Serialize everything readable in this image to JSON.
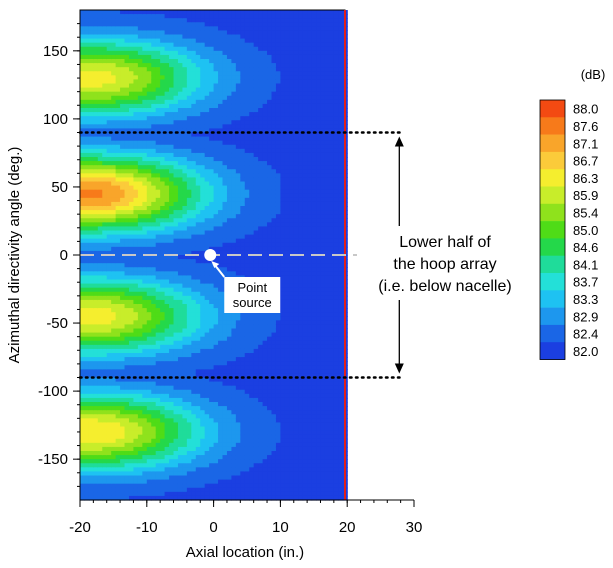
{
  "chart_data": {
    "type": "heatmap",
    "xlabel": "Axial location (in.)",
    "ylabel": "Azimuthal directivity angle (deg.)",
    "xlim": [
      -20,
      30
    ],
    "ylim": [
      -180,
      180
    ],
    "xticks": [
      "-20",
      "-10",
      "0",
      "10",
      "20",
      "30"
    ],
    "yticks": [
      "150",
      "100",
      "50",
      "0",
      "-50",
      "-100",
      "-150"
    ],
    "data_xlim": [
      -20,
      20
    ],
    "colorbar": {
      "unit": "(dB)",
      "levels": [
        "88.0",
        "87.6",
        "87.1",
        "86.7",
        "86.3",
        "85.9",
        "85.4",
        "85.0",
        "84.6",
        "84.1",
        "83.7",
        "83.3",
        "82.9",
        "82.4",
        "82.0"
      ],
      "colors": [
        "#f34a12",
        "#f77a1a",
        "#f9a52a",
        "#fbcb3a",
        "#f5ee2e",
        "#c8ed2a",
        "#8fe21c",
        "#4fdc17",
        "#24d84a",
        "#1fdc9a",
        "#23e0d8",
        "#1ec2f2",
        "#1d97ee",
        "#1a66e6",
        "#1b3fe1"
      ]
    },
    "field_peaks": [
      {
        "angle": 130,
        "x": -18,
        "level": 86.3
      },
      {
        "angle": 45,
        "x": -18,
        "level": 87.4
      },
      {
        "angle": -45,
        "x": -18,
        "level": 86.3
      },
      {
        "angle": -130,
        "x": -18,
        "level": 86.5
      }
    ],
    "reference_lines": [
      {
        "angle": 90,
        "style": "dotted"
      },
      {
        "angle": -90,
        "style": "dotted"
      },
      {
        "angle": 0,
        "style": "dashed"
      }
    ],
    "annotations": {
      "point_source_label": [
        "Point",
        "source"
      ],
      "point_source_at": {
        "x": -0.5,
        "y": 0
      },
      "region_label": [
        "Lower half of",
        "the hoop array",
        "(i.e. below nacelle)"
      ],
      "region_range": [
        -90,
        90
      ]
    }
  }
}
